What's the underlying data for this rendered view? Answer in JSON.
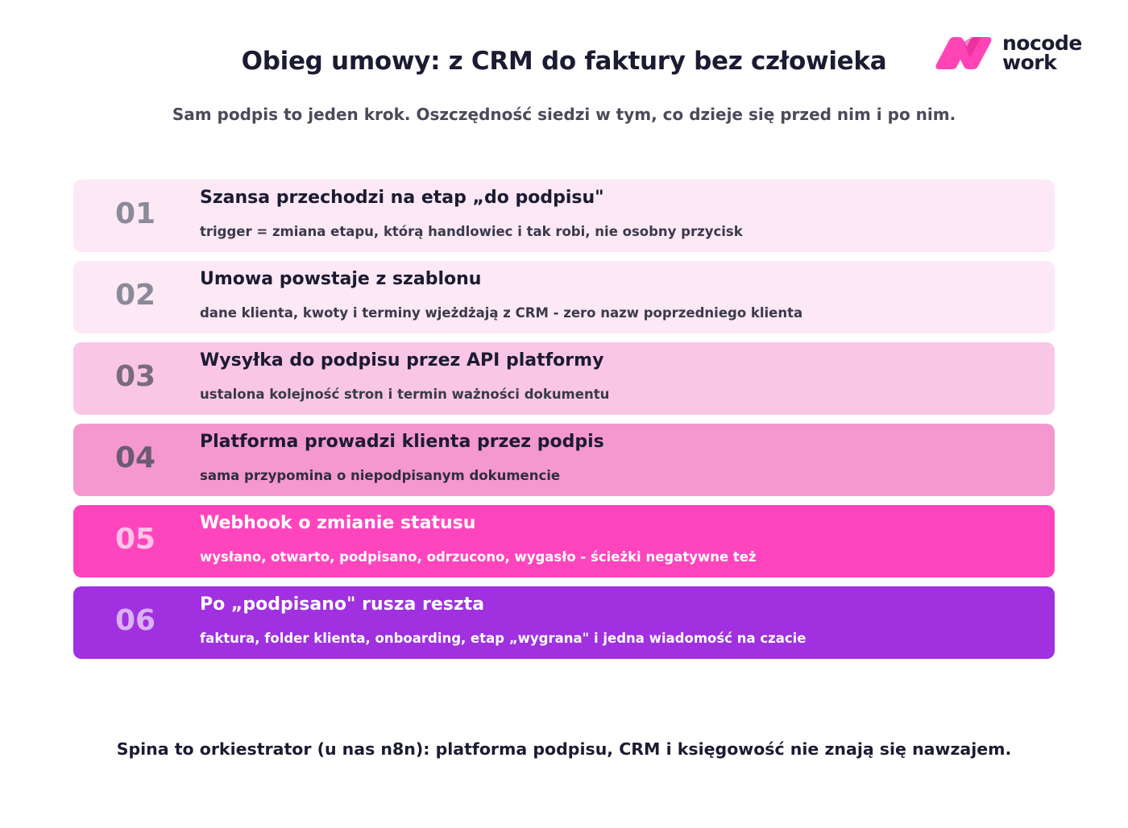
{
  "header": {
    "title": "Obieg umowy: z CRM do faktury bez człowieka",
    "subtitle": "Sam podpis to jeden krok. Oszczędność siedzi w tym, co dzieje się przed nim i po nim."
  },
  "logo": {
    "line1": "nocode",
    "line2": "work",
    "accent_color": "#ff45b5"
  },
  "steps": [
    {
      "num": "01",
      "title": "Szansa przechodzi na etap „do podpisu\"",
      "desc": "trigger = zmiana etapu, którą handlowiec i tak robi, nie osobny przycisk",
      "bg": "#fde8f5",
      "num_color": "#8a8a98",
      "title_color": "#1b1b32",
      "desc_color": "#3a3a4a"
    },
    {
      "num": "02",
      "title": "Umowa powstaje z szablonu",
      "desc": "dane klienta, kwoty i terminy wjeżdżają z CRM - zero nazw poprzedniego klienta",
      "bg": "#fde8f5",
      "num_color": "#8a8a98",
      "title_color": "#1b1b32",
      "desc_color": "#3a3a4a"
    },
    {
      "num": "03",
      "title": "Wysyłka do podpisu przez API platformy",
      "desc": "ustalona kolejność stron i termin ważności dokumentu",
      "bg": "#fac6e6",
      "num_color": "#7a6a80",
      "title_color": "#1b1b32",
      "desc_color": "#3a3a4a"
    },
    {
      "num": "04",
      "title": "Platforma prowadzi klienta przez podpis",
      "desc": "sama przypomina o niepodpisanym dokumencie",
      "bg": "#f598cf",
      "num_color": "#6a5a72",
      "title_color": "#1b1b32",
      "desc_color": "#2e2e3e"
    },
    {
      "num": "05",
      "title": "Webhook o zmianie statusu",
      "desc": "wysłano, otwarto, podpisano, odrzucono, wygasło - ścieżki negatywne też",
      "bg": "#ff45bd",
      "num_color": "#ffc2e8",
      "title_color": "#ffffff",
      "desc_color": "#ffffff"
    },
    {
      "num": "06",
      "title": "Po „podpisano\" rusza reszta",
      "desc": "faktura, folder klienta, onboarding, etap „wygrana\" i jedna wiadomość na czacie",
      "bg": "#a030e0",
      "num_color": "#dcb0f4",
      "title_color": "#ffffff",
      "desc_color": "#ffffff"
    }
  ],
  "footer": {
    "text": "Spina to orkiestrator (u nas n8n): platforma podpisu, CRM i księgowość nie znają się nawzajem."
  }
}
